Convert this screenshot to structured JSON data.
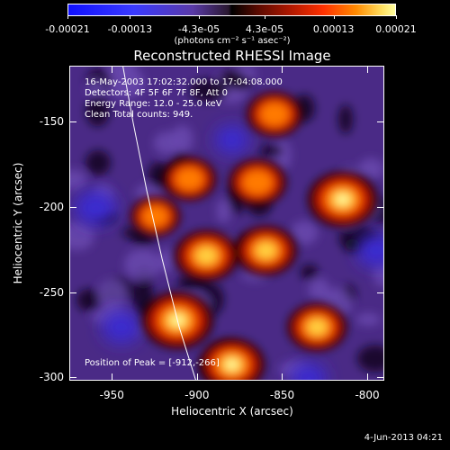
{
  "colorbar": {
    "tick_labels": [
      "-0.00021",
      "-0.00013",
      "-4.3e-05",
      "4.3e-05",
      "0.00013",
      "0.00021"
    ],
    "units_text": "(photons cm⁻² s⁻¹ asec⁻²)",
    "colormap": [
      "#1010ff",
      "#5a3aa8",
      "#000000",
      "#b01800",
      "#ff8a00",
      "#ffffa0"
    ]
  },
  "header": {
    "title": "Reconstructed RHESSI Image"
  },
  "info": {
    "time_line": "16-May-2003 17:02:32.000 to 17:04:08.000",
    "detectors_line": "Detectors: 4F 5F 6F 7F 8F, Att 0",
    "energy_line": "Energy Range: 12.0 - 25.0 keV",
    "clean_line": "Clean     Total counts: 949.",
    "peak_line": "Position of Peak = [-912,-266]"
  },
  "chart_data": {
    "type": "heatmap",
    "title": "Reconstructed RHESSI Image",
    "xlabel": "Heliocentric X (arcsec)",
    "ylabel": "Heliocentric Y (arcsec)",
    "xlim": [
      -975,
      -790
    ],
    "ylim": [
      -302,
      -117
    ],
    "xticks": [
      -950,
      -900,
      -850,
      -800
    ],
    "xtick_labels": [
      "-950",
      "-900",
      "-850",
      "-800"
    ],
    "yticks": [
      -150,
      -200,
      -250,
      -300
    ],
    "ytick_labels": [
      "-150",
      "-200",
      "-250",
      "-300"
    ],
    "zlim": [
      -0.00021,
      0.00021
    ],
    "peak": [
      -912,
      -266
    ],
    "bright_sources": [
      {
        "x": -912,
        "y": -266,
        "level": 1.0
      },
      {
        "x": -880,
        "y": -292,
        "level": 0.85
      },
      {
        "x": -815,
        "y": -195,
        "level": 0.95
      },
      {
        "x": -895,
        "y": -228,
        "level": 0.8
      },
      {
        "x": -860,
        "y": -225,
        "level": 0.75
      },
      {
        "x": -865,
        "y": -185,
        "level": 0.65
      },
      {
        "x": -830,
        "y": -270,
        "level": 0.7
      },
      {
        "x": -905,
        "y": -183,
        "level": 0.55
      },
      {
        "x": -855,
        "y": -145,
        "level": 0.6
      },
      {
        "x": -925,
        "y": -205,
        "level": 0.45
      }
    ],
    "negative_sources": [
      {
        "x": -960,
        "y": -200,
        "level": 0.8
      },
      {
        "x": -945,
        "y": -270,
        "level": 0.7
      },
      {
        "x": -795,
        "y": -225,
        "level": 0.75
      },
      {
        "x": -880,
        "y": -160,
        "level": 0.5
      },
      {
        "x": -835,
        "y": -300,
        "level": 0.6
      }
    ],
    "limb_x": [
      -944,
      -938,
      -930,
      -921,
      -911,
      -901
    ],
    "limb_y": [
      -117,
      -150,
      -190,
      -230,
      -270,
      -302
    ]
  },
  "timestamp": "4-Jun-2013 04:21"
}
